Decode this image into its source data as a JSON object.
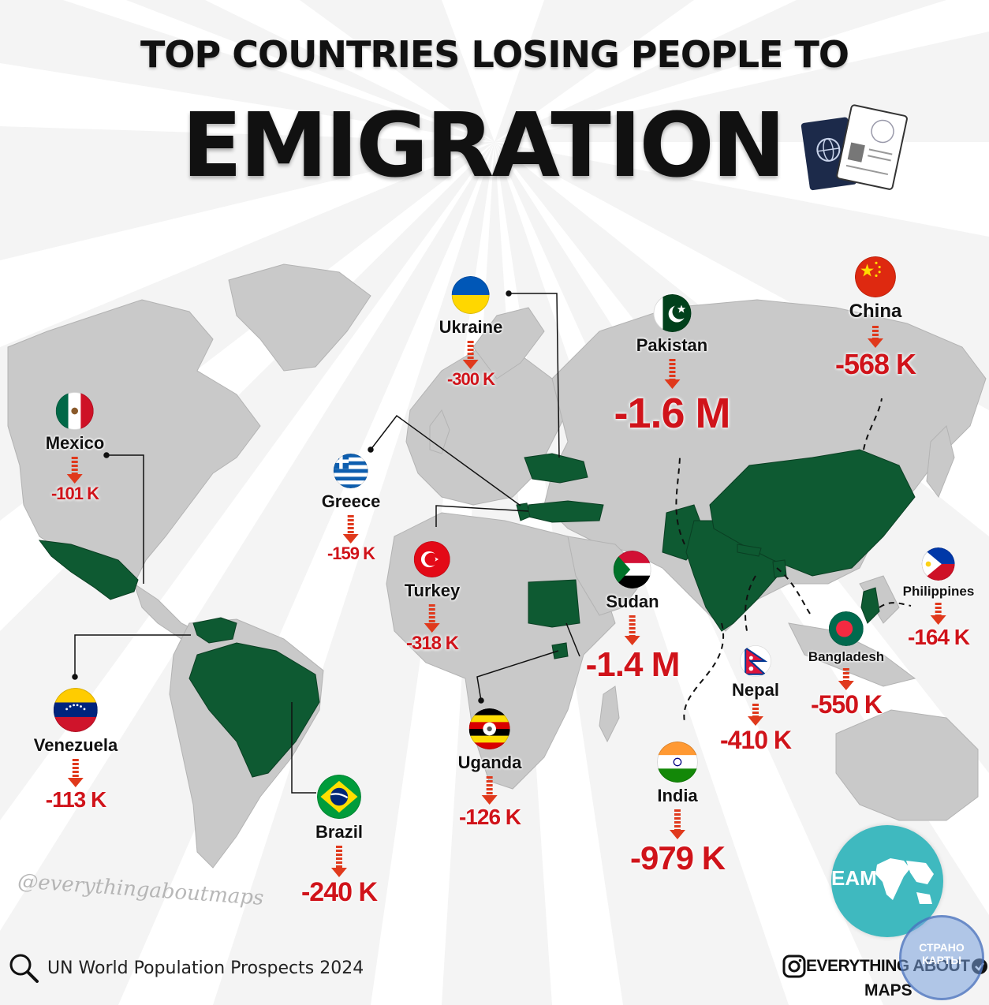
{
  "title": {
    "line1": "TOP COUNTRIES LOSING PEOPLE TO",
    "line2": "EMIGRATION"
  },
  "colors": {
    "highlight_country": "#0e5a32",
    "land": "#c8c8c8",
    "value_red": "#d0131a",
    "arrow_red": "#e0391c"
  },
  "countries": [
    {
      "name": "Mexico",
      "value": "-101 K",
      "flag": "mexico"
    },
    {
      "name": "Ukraine",
      "value": "-300 K",
      "flag": "ukraine"
    },
    {
      "name": "Pakistan",
      "value": "-1.6 M",
      "flag": "pakistan"
    },
    {
      "name": "China",
      "value": "-568 K",
      "flag": "china"
    },
    {
      "name": "Greece",
      "value": "-159 K",
      "flag": "greece"
    },
    {
      "name": "Turkey",
      "value": "-318 K",
      "flag": "turkey"
    },
    {
      "name": "Sudan",
      "value": "-1.4 M",
      "flag": "sudan"
    },
    {
      "name": "Philippines",
      "value": "-164 K",
      "flag": "philippines"
    },
    {
      "name": "Bangladesh",
      "value": "-550 K",
      "flag": "bangladesh"
    },
    {
      "name": "Nepal",
      "value": "-410 K",
      "flag": "nepal"
    },
    {
      "name": "Venezuela",
      "value": "-113 K",
      "flag": "venezuela"
    },
    {
      "name": "Uganda",
      "value": "-126 K",
      "flag": "uganda"
    },
    {
      "name": "India",
      "value": "-979 K",
      "flag": "india"
    },
    {
      "name": "Brazil",
      "value": "-240 K",
      "flag": "brazil"
    }
  ],
  "source": {
    "text": "UN World Population Prospects 2024",
    "icon": "search-icon"
  },
  "watermark": "@everythingaboutmaps",
  "logo": {
    "text": "EAM"
  },
  "brand": {
    "line1": "EVERYTHING ABOUT",
    "line2": "MAPS",
    "icon": "instagram-icon"
  },
  "stamp": {
    "line1": "СТРАНО",
    "line2": "КАРТЫ"
  }
}
